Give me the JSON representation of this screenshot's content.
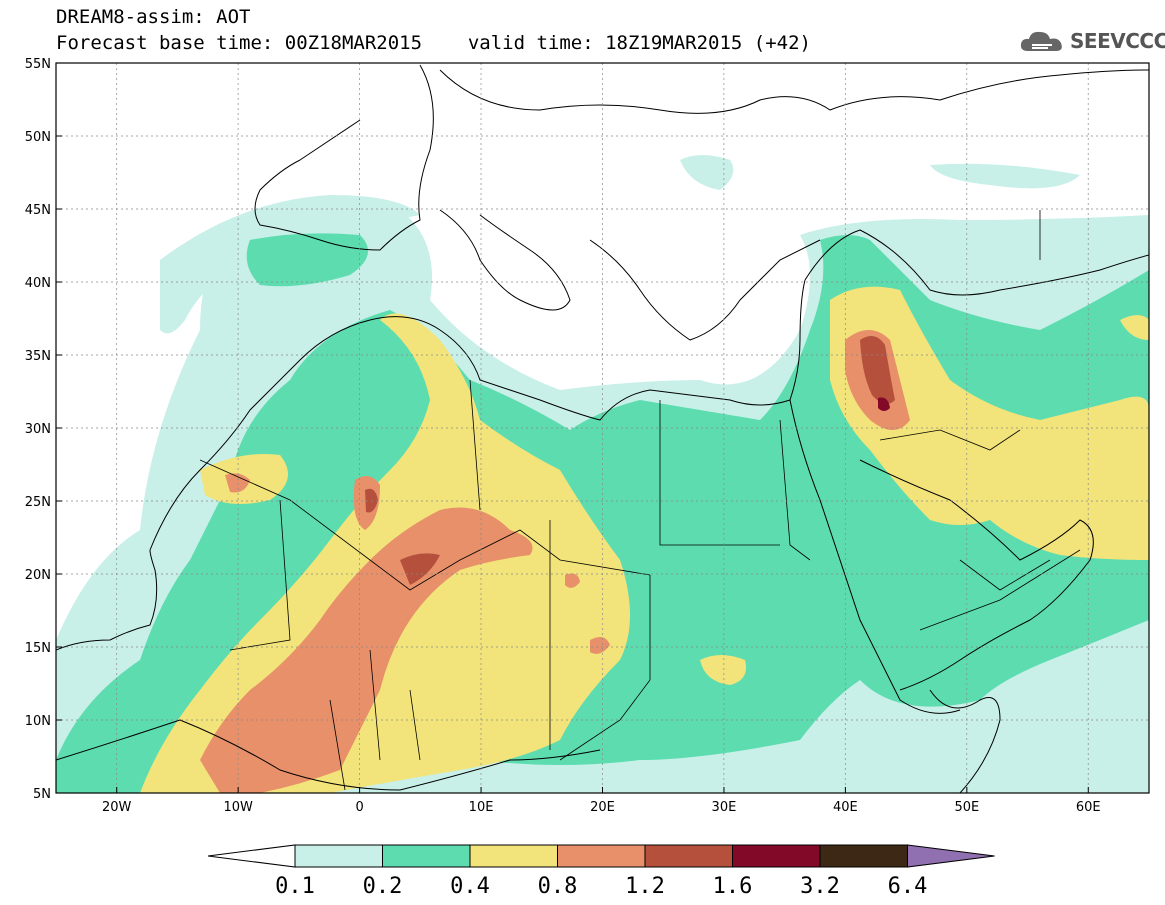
{
  "header": {
    "title": "DREAM8-assim: AOT",
    "base_time_label": "Forecast base time: 00Z18MAR2015",
    "valid_time_label": "valid time: 18Z19MAR2015 (+42)"
  },
  "logo": {
    "text": "SEEVCCC"
  },
  "map": {
    "lon_range": [
      -25,
      65
    ],
    "lat_range": [
      5,
      55
    ],
    "x_ticks": [
      {
        "lon": -20,
        "label": "20W"
      },
      {
        "lon": -10,
        "label": "10W"
      },
      {
        "lon": 0,
        "label": "0"
      },
      {
        "lon": 10,
        "label": "10E"
      },
      {
        "lon": 20,
        "label": "20E"
      },
      {
        "lon": 30,
        "label": "30E"
      },
      {
        "lon": 40,
        "label": "40E"
      },
      {
        "lon": 50,
        "label": "50E"
      },
      {
        "lon": 60,
        "label": "60E"
      }
    ],
    "y_ticks": [
      {
        "lat": 55,
        "label": "55N"
      },
      {
        "lat": 50,
        "label": "50N"
      },
      {
        "lat": 45,
        "label": "45N"
      },
      {
        "lat": 40,
        "label": "40N"
      },
      {
        "lat": 35,
        "label": "35N"
      },
      {
        "lat": 30,
        "label": "30N"
      },
      {
        "lat": 25,
        "label": "25N"
      },
      {
        "lat": 20,
        "label": "20N"
      },
      {
        "lat": 15,
        "label": "15N"
      },
      {
        "lat": 10,
        "label": "10N"
      },
      {
        "lat": 5,
        "label": "5N"
      }
    ],
    "grid": "dashed"
  },
  "colorbar": {
    "labels": [
      "0.1",
      "0.2",
      "0.4",
      "0.8",
      "1.2",
      "1.6",
      "3.2",
      "6.4"
    ],
    "colors": [
      "#ffffff",
      "#c8f0e8",
      "#5ddcb0",
      "#f2e47a",
      "#e8906a",
      "#b4503c",
      "#820a28",
      "#3c2814",
      "#9070b0"
    ]
  }
}
